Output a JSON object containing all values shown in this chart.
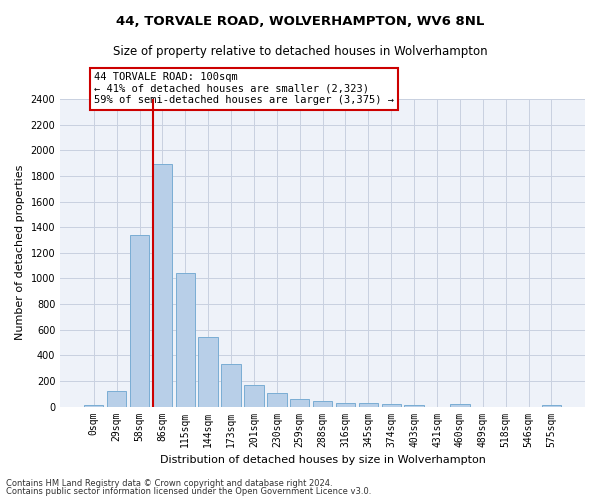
{
  "title": "44, TORVALE ROAD, WOLVERHAMPTON, WV6 8NL",
  "subtitle": "Size of property relative to detached houses in Wolverhampton",
  "xlabel": "Distribution of detached houses by size in Wolverhampton",
  "ylabel": "Number of detached properties",
  "bar_color": "#b8cfe8",
  "bar_edge_color": "#7aadd4",
  "background_color": "#eef2f9",
  "grid_color": "#c8d0e0",
  "annotation_box_color": "#cc0000",
  "vline_color": "#cc0000",
  "categories": [
    "0sqm",
    "29sqm",
    "58sqm",
    "86sqm",
    "115sqm",
    "144sqm",
    "173sqm",
    "201sqm",
    "230sqm",
    "259sqm",
    "288sqm",
    "316sqm",
    "345sqm",
    "374sqm",
    "403sqm",
    "431sqm",
    "460sqm",
    "489sqm",
    "518sqm",
    "546sqm",
    "575sqm"
  ],
  "values": [
    15,
    125,
    1340,
    1890,
    1040,
    540,
    335,
    165,
    105,
    60,
    40,
    30,
    25,
    20,
    15,
    0,
    20,
    0,
    0,
    0,
    15
  ],
  "vline_x_index": 3,
  "annotation_text_line1": "44 TORVALE ROAD: 100sqm",
  "annotation_text_line2": "← 41% of detached houses are smaller (2,323)",
  "annotation_text_line3": "59% of semi-detached houses are larger (3,375) →",
  "ylim": [
    0,
    2400
  ],
  "yticks": [
    0,
    200,
    400,
    600,
    800,
    1000,
    1200,
    1400,
    1600,
    1800,
    2000,
    2200,
    2400
  ],
  "footer_line1": "Contains HM Land Registry data © Crown copyright and database right 2024.",
  "footer_line2": "Contains public sector information licensed under the Open Government Licence v3.0.",
  "title_fontsize": 9.5,
  "subtitle_fontsize": 8.5,
  "annotation_fontsize": 7.5,
  "ylabel_fontsize": 8,
  "xlabel_fontsize": 8,
  "tick_fontsize": 7,
  "footer_fontsize": 6
}
